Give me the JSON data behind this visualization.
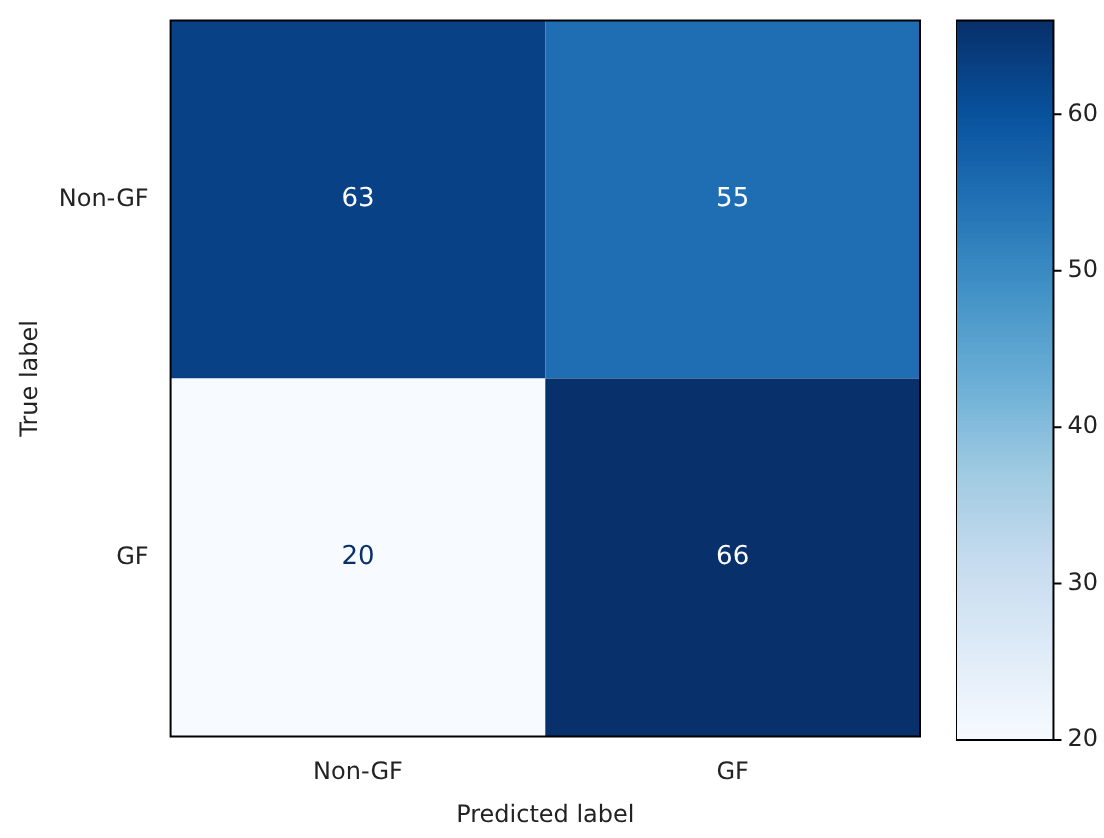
{
  "chart_data": {
    "type": "heatmap",
    "xlabel": "Predicted label",
    "ylabel": "True label",
    "categories": [
      "Non-GF",
      "GF"
    ],
    "y_categories": [
      "Non-GF",
      "GF"
    ],
    "cells": [
      [
        63,
        55
      ],
      [
        20,
        66
      ]
    ],
    "clim": [
      20,
      66
    ],
    "data_labels": true,
    "cticks": [
      20,
      30,
      40,
      50,
      60
    ]
  }
}
